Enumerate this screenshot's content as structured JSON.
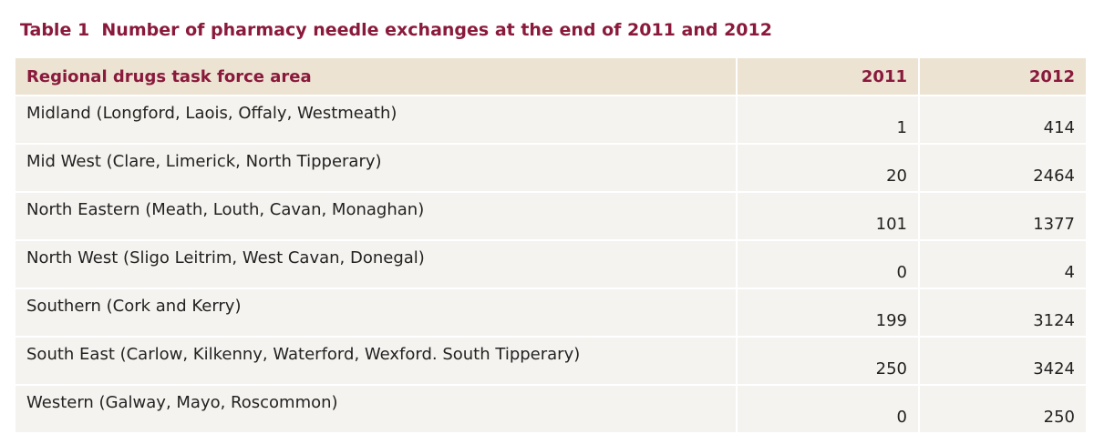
{
  "title": "Table 1  Number of pharmacy needle exchanges at the end of 2011 and 2012",
  "table": {
    "header": [
      "Regional drugs task force area",
      "2011",
      "2012"
    ],
    "rows": [
      [
        "Midland (Longford, Laois, Offaly, Westmeath)",
        1,
        414
      ],
      [
        "Mid West (Clare, Limerick, North Tipperary)",
        20,
        2464
      ],
      [
        "North Eastern (Meath, Louth, Cavan, Monaghan)",
        101,
        1377
      ],
      [
        "North West (Sligo Leitrim, West Cavan, Donegal)",
        0,
        4
      ],
      [
        "Southern (Cork and Kerry)",
        199,
        3124
      ],
      [
        "South East (Carlow, Kilkenny, Waterford, Wexford. South Tipperary)",
        250,
        3424
      ],
      [
        "Western (Galway, Mayo, Roscommon)",
        0,
        250
      ]
    ]
  }
}
